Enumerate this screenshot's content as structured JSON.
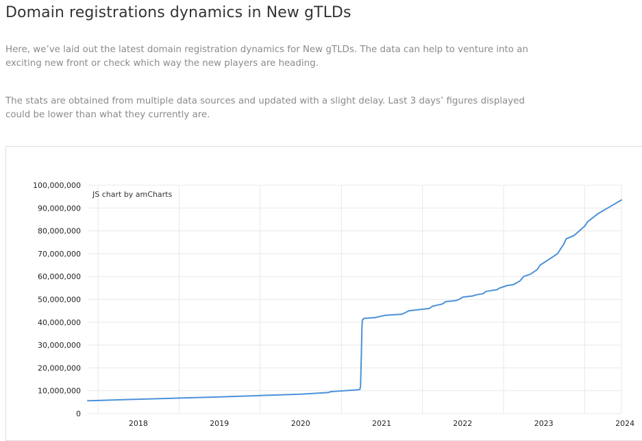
{
  "header": {
    "title": "Domain registrations dynamics in New gTLDs"
  },
  "intro": {
    "paragraph_1": "Here, we’ve laid out the latest domain registration dynamics for New gTLDs. The data can help to venture into an exciting new front or check which way the new players are heading.",
    "paragraph_2": "The stats are obtained from multiple data sources and updated with a slight delay. Last 3 days’ figures displayed could be lower than what they currently are."
  },
  "chart_credit": "JS chart by amCharts",
  "colors": {
    "line": "#4a90d9",
    "grid": "#e8e8e8",
    "text": "#222222"
  },
  "chart_data": {
    "type": "line",
    "title": "",
    "xlabel": "",
    "ylabel": "",
    "ylim": [
      0,
      100000000
    ],
    "xlim": [
      "2017-11-15",
      "2024-06-15"
    ],
    "y_ticks": [
      "0",
      "10,000,000",
      "20,000,000",
      "30,000,000",
      "40,000,000",
      "50,000,000",
      "60,000,000",
      "70,000,000",
      "80,000,000",
      "90,000,000",
      "100,000,000"
    ],
    "x_ticks": [
      "2018",
      "2019",
      "2020",
      "2021",
      "2022",
      "2023",
      "2024"
    ],
    "grid": true,
    "legend": "none",
    "series": [
      {
        "x": [
          "2017-11-15",
          "2018-06-01",
          "2019-01-01",
          "2019-07-01",
          "2020-01-01",
          "2020-07-01",
          "2020-11-01",
          "2020-11-15",
          "2021-03-15",
          "2021-03-25",
          "2021-03-28",
          "2021-04-01",
          "2021-04-03",
          "2021-04-05",
          "2021-04-08",
          "2021-04-10",
          "2021-04-15",
          "2021-06-01",
          "2021-07-15",
          "2021-10-01",
          "2021-11-01",
          "2021-12-15",
          "2022-02-01",
          "2022-02-15",
          "2022-04-01",
          "2022-04-15",
          "2022-06-01",
          "2022-06-15",
          "2022-07-01",
          "2022-08-15",
          "2022-09-01",
          "2022-10-01",
          "2022-10-15",
          "2022-11-15",
          "2022-12-01",
          "2022-12-15",
          "2023-01-15",
          "2023-02-15",
          "2023-03-15",
          "2023-04-01",
          "2023-05-01",
          "2023-06-01",
          "2023-06-15",
          "2023-08-01",
          "2023-09-01",
          "2023-10-01",
          "2023-10-10",
          "2023-11-15",
          "2024-01-01",
          "2024-01-15",
          "2024-03-01",
          "2024-06-15"
        ],
        "values": [
          5600000,
          6200000,
          6800000,
          7300000,
          7900000,
          8500000,
          9200000,
          9600000,
          10400000,
          10600000,
          12000000,
          27000000,
          37000000,
          41000000,
          41200000,
          41500000,
          41700000,
          42000000,
          43000000,
          43500000,
          45000000,
          45500000,
          46000000,
          47000000,
          48000000,
          49000000,
          49500000,
          50000000,
          51000000,
          51500000,
          52000000,
          52500000,
          53500000,
          54000000,
          54200000,
          55000000,
          56000000,
          56500000,
          58000000,
          60000000,
          61000000,
          63000000,
          65000000,
          68000000,
          70000000,
          74500000,
          76500000,
          78000000,
          82000000,
          84000000,
          87500000,
          93500000
        ]
      }
    ]
  }
}
